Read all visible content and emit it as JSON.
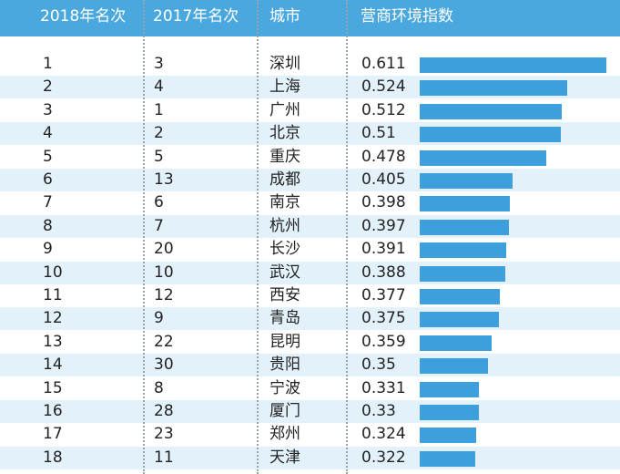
{
  "header": {
    "rank_2018": "2018年名次",
    "rank_2017": "2017年名次",
    "city": "城市",
    "index": "营商环境指数"
  },
  "rows": [
    {
      "rank_2018": "1",
      "rank_2017": "3",
      "city": "深圳",
      "index": "0.611"
    },
    {
      "rank_2018": "2",
      "rank_2017": "4",
      "city": "上海",
      "index": "0.524"
    },
    {
      "rank_2018": "3",
      "rank_2017": "1",
      "city": "广州",
      "index": "0.512"
    },
    {
      "rank_2018": "4",
      "rank_2017": "2",
      "city": "北京",
      "index": "0.51"
    },
    {
      "rank_2018": "5",
      "rank_2017": "5",
      "city": "重庆",
      "index": "0.478"
    },
    {
      "rank_2018": "6",
      "rank_2017": "13",
      "city": "成都",
      "index": "0.405"
    },
    {
      "rank_2018": "7",
      "rank_2017": "6",
      "city": "南京",
      "index": "0.398"
    },
    {
      "rank_2018": "8",
      "rank_2017": "7",
      "city": "杭州",
      "index": "0.397"
    },
    {
      "rank_2018": "9",
      "rank_2017": "20",
      "city": "长沙",
      "index": "0.391"
    },
    {
      "rank_2018": "10",
      "rank_2017": "10",
      "city": "武汉",
      "index": "0.388"
    },
    {
      "rank_2018": "11",
      "rank_2017": "12",
      "city": "西安",
      "index": "0.377"
    },
    {
      "rank_2018": "12",
      "rank_2017": "9",
      "city": "青岛",
      "index": "0.375"
    },
    {
      "rank_2018": "13",
      "rank_2017": "22",
      "city": "昆明",
      "index": "0.359"
    },
    {
      "rank_2018": "14",
      "rank_2017": "30",
      "city": "贵阳",
      "index": "0.35"
    },
    {
      "rank_2018": "15",
      "rank_2017": "8",
      "city": "宁波",
      "index": "0.331"
    },
    {
      "rank_2018": "16",
      "rank_2017": "28",
      "city": "厦门",
      "index": "0.33"
    },
    {
      "rank_2018": "17",
      "rank_2017": "23",
      "city": "郑州",
      "index": "0.324"
    },
    {
      "rank_2018": "18",
      "rank_2017": "11",
      "city": "天津",
      "index": "0.322"
    }
  ],
  "colors": {
    "header_bg": "#4ba8df",
    "bar": "#3d9fdb",
    "stripe": "#e3f1fb"
  },
  "chart_data": {
    "type": "bar",
    "orientation": "horizontal",
    "categories": [
      "深圳",
      "上海",
      "广州",
      "北京",
      "重庆",
      "成都",
      "南京",
      "杭州",
      "长沙",
      "武汉",
      "西安",
      "青岛",
      "昆明",
      "贵阳",
      "宁波",
      "厦门",
      "郑州",
      "天津"
    ],
    "values": [
      0.611,
      0.524,
      0.512,
      0.51,
      0.478,
      0.405,
      0.398,
      0.397,
      0.391,
      0.388,
      0.377,
      0.375,
      0.359,
      0.35,
      0.331,
      0.33,
      0.324,
      0.322
    ],
    "xlim": [
      0.2,
      0.611
    ],
    "grid": false,
    "data_labels": true
  }
}
